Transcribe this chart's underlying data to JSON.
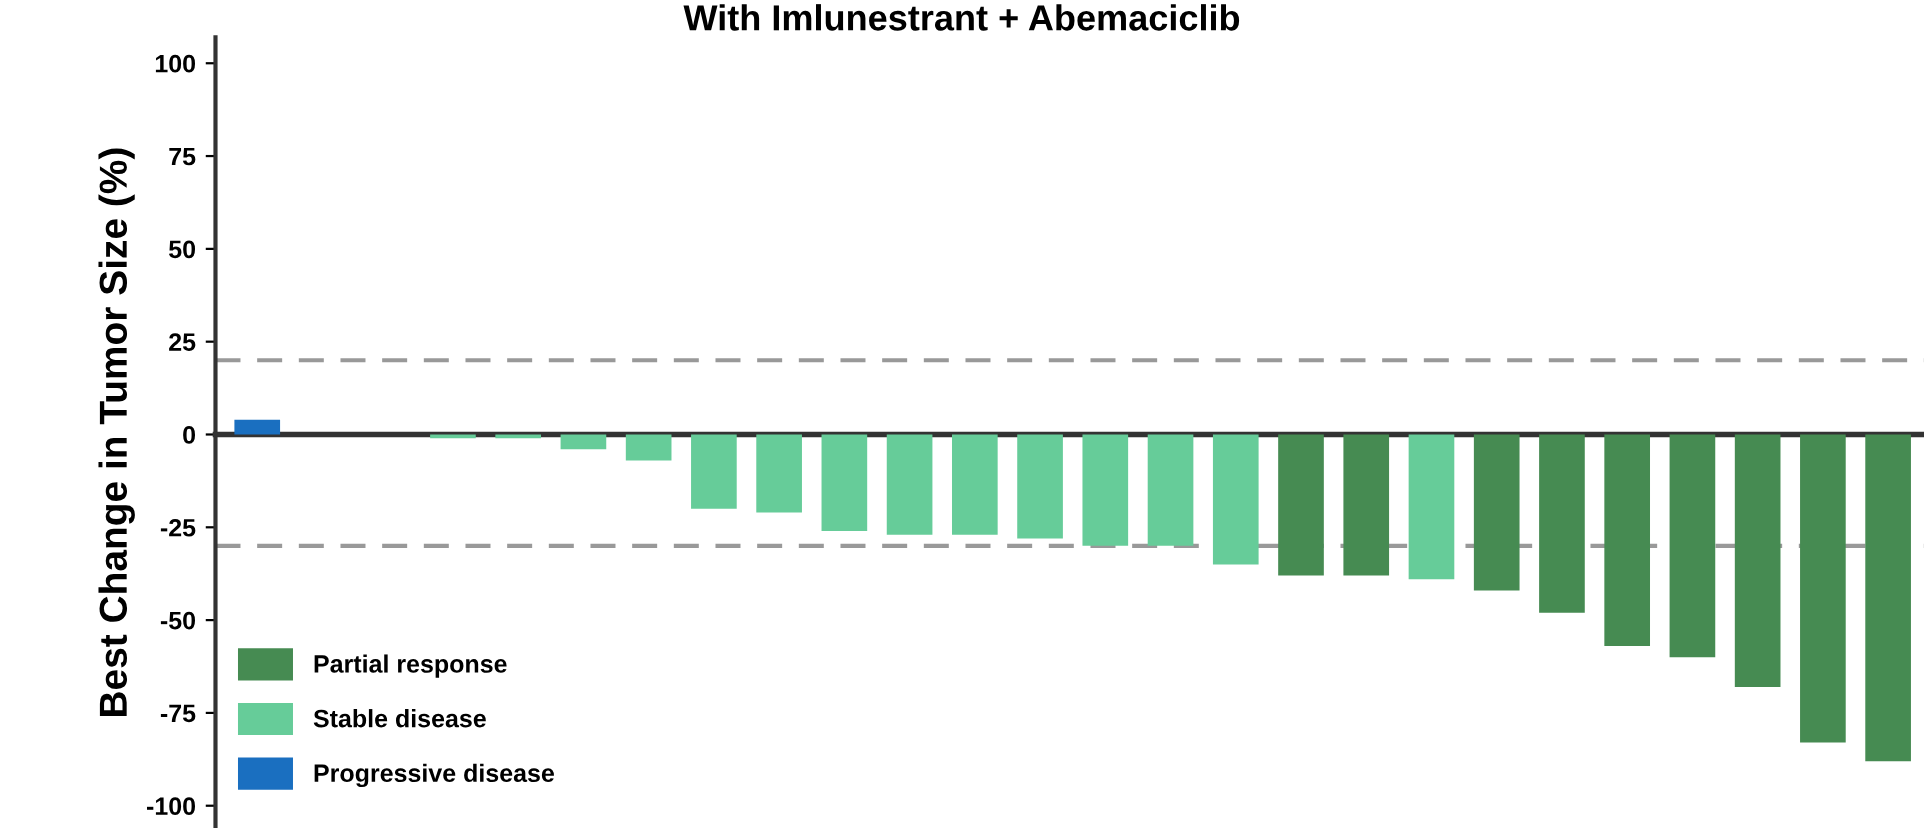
{
  "chart_data": {
    "type": "bar",
    "stacked": true,
    "title": "With Imlunestrant + Abemaciclib",
    "ylabel": "Best Change in Tumor Size (%)",
    "categories": [
      null,
      null,
      null,
      null,
      null,
      null,
      null,
      null,
      null,
      null,
      null,
      null,
      null,
      null,
      null,
      null,
      null,
      null,
      null,
      null,
      null,
      null,
      null,
      null,
      null,
      null
    ],
    "series": [
      {
        "name": "Partial response",
        "color": "#468b52",
        "values": [
          null,
          null,
          null,
          null,
          null,
          null,
          null,
          null,
          null,
          null,
          null,
          null,
          null,
          null,
          null,
          null,
          -38,
          -38,
          null,
          -42,
          -48,
          -57,
          -60,
          -68,
          -83,
          -88
        ]
      },
      {
        "name": "Stable disease",
        "color": "#66cc99",
        "values": [
          null,
          0,
          0,
          -1,
          -1,
          -4,
          -7,
          -20,
          -21,
          -26,
          -27,
          -27,
          -28,
          -30,
          -30,
          -35,
          null,
          null,
          -39,
          null,
          null,
          null,
          null,
          null,
          null,
          null
        ]
      },
      {
        "name": "Progressive disease",
        "color": "#1a6fc0",
        "values": [
          4,
          null,
          null,
          null,
          null,
          null,
          null,
          null,
          null,
          null,
          null,
          null,
          null,
          null,
          null,
          null,
          null,
          null,
          null,
          null,
          null,
          null,
          null,
          null,
          null,
          null
        ]
      }
    ],
    "ylim": [
      -106,
      107
    ],
    "yticks": [
      -100,
      -75,
      -50,
      -25,
      0,
      25,
      50,
      75,
      100
    ],
    "ref_lines": [
      {
        "axis": "y",
        "value": 20,
        "color": "#999999",
        "line_style": "dashed"
      },
      {
        "axis": "y",
        "value": -30,
        "color": "#999999",
        "line_style": "dashed"
      }
    ],
    "legend": "bottom left"
  }
}
